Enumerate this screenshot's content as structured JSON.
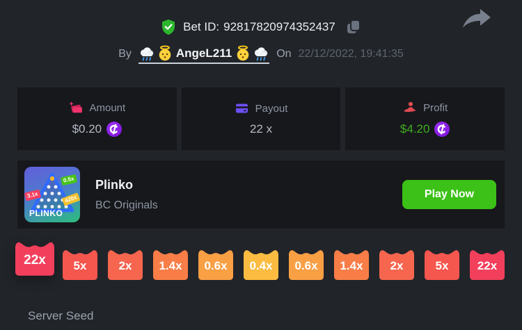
{
  "colors": {
    "page_bg": "#212429",
    "card_bg": "#17181c",
    "accent_green": "#3bc117",
    "profit_green": "#3fae1f",
    "coin_purple": "#7a10d8",
    "amount_pink": "#f0336d",
    "payout_purple": "#6d4ff7",
    "profit_red": "#e14b52",
    "verified_green": "#2db62d",
    "badge_red": "#f23f5b",
    "badge_yellow": "#fbbc41"
  },
  "icons": {
    "share-icon": "share-arrow",
    "verified-icon": "shield-with-checkmark",
    "copy-icon": "overlapping-squares",
    "amount-icon": "cash-notes-with-sparkle",
    "payout-icon": "credit-card",
    "profit-icon": "hand-holding-person",
    "coin-icon": "purple-crypto-coin-C",
    "rain-cloud-icon": "cloud-with-rain-emoji",
    "angel-icon": "baby-angel-emoji"
  },
  "header": {
    "bet_id_label": "Bet ID:",
    "bet_id": "92817820974352437",
    "by_label": "By",
    "username": "AngeL211",
    "on_label": "On",
    "timestamp": "22/12/2022, 19:41:35"
  },
  "stats": {
    "cards": [
      {
        "label": "Amount",
        "value": "$0.20",
        "has_coin": true
      },
      {
        "label": "Payout",
        "value": "22 x",
        "has_coin": false
      },
      {
        "label": "Profit",
        "value": "$4.20",
        "has_coin": true
      }
    ]
  },
  "game": {
    "title": "Plinko",
    "provider": "BC Originals",
    "play_button": "Play Now",
    "tile_text": "PLINKO",
    "tile_tags": [
      {
        "text": "3.1x"
      },
      {
        "text": "0.5x"
      },
      {
        "text": "420x"
      }
    ]
  },
  "multipliers": [
    {
      "label": "22x",
      "color": "#f23f5b",
      "active": true
    },
    {
      "label": "5x",
      "color": "#f5564e",
      "active": false
    },
    {
      "label": "2x",
      "color": "#f6664f",
      "active": false
    },
    {
      "label": "1.4x",
      "color": "#f87d47",
      "active": false
    },
    {
      "label": "0.6x",
      "color": "#f99f44",
      "active": false
    },
    {
      "label": "0.4x",
      "color": "#fbbc41",
      "active": false
    },
    {
      "label": "0.6x",
      "color": "#f99f44",
      "active": false
    },
    {
      "label": "1.4x",
      "color": "#f87d47",
      "active": false
    },
    {
      "label": "2x",
      "color": "#f6664f",
      "active": false
    },
    {
      "label": "5x",
      "color": "#f5564e",
      "active": false
    },
    {
      "label": "22x",
      "color": "#f23f5b",
      "active": false
    }
  ],
  "footer": {
    "server_seed_label": "Server Seed"
  }
}
